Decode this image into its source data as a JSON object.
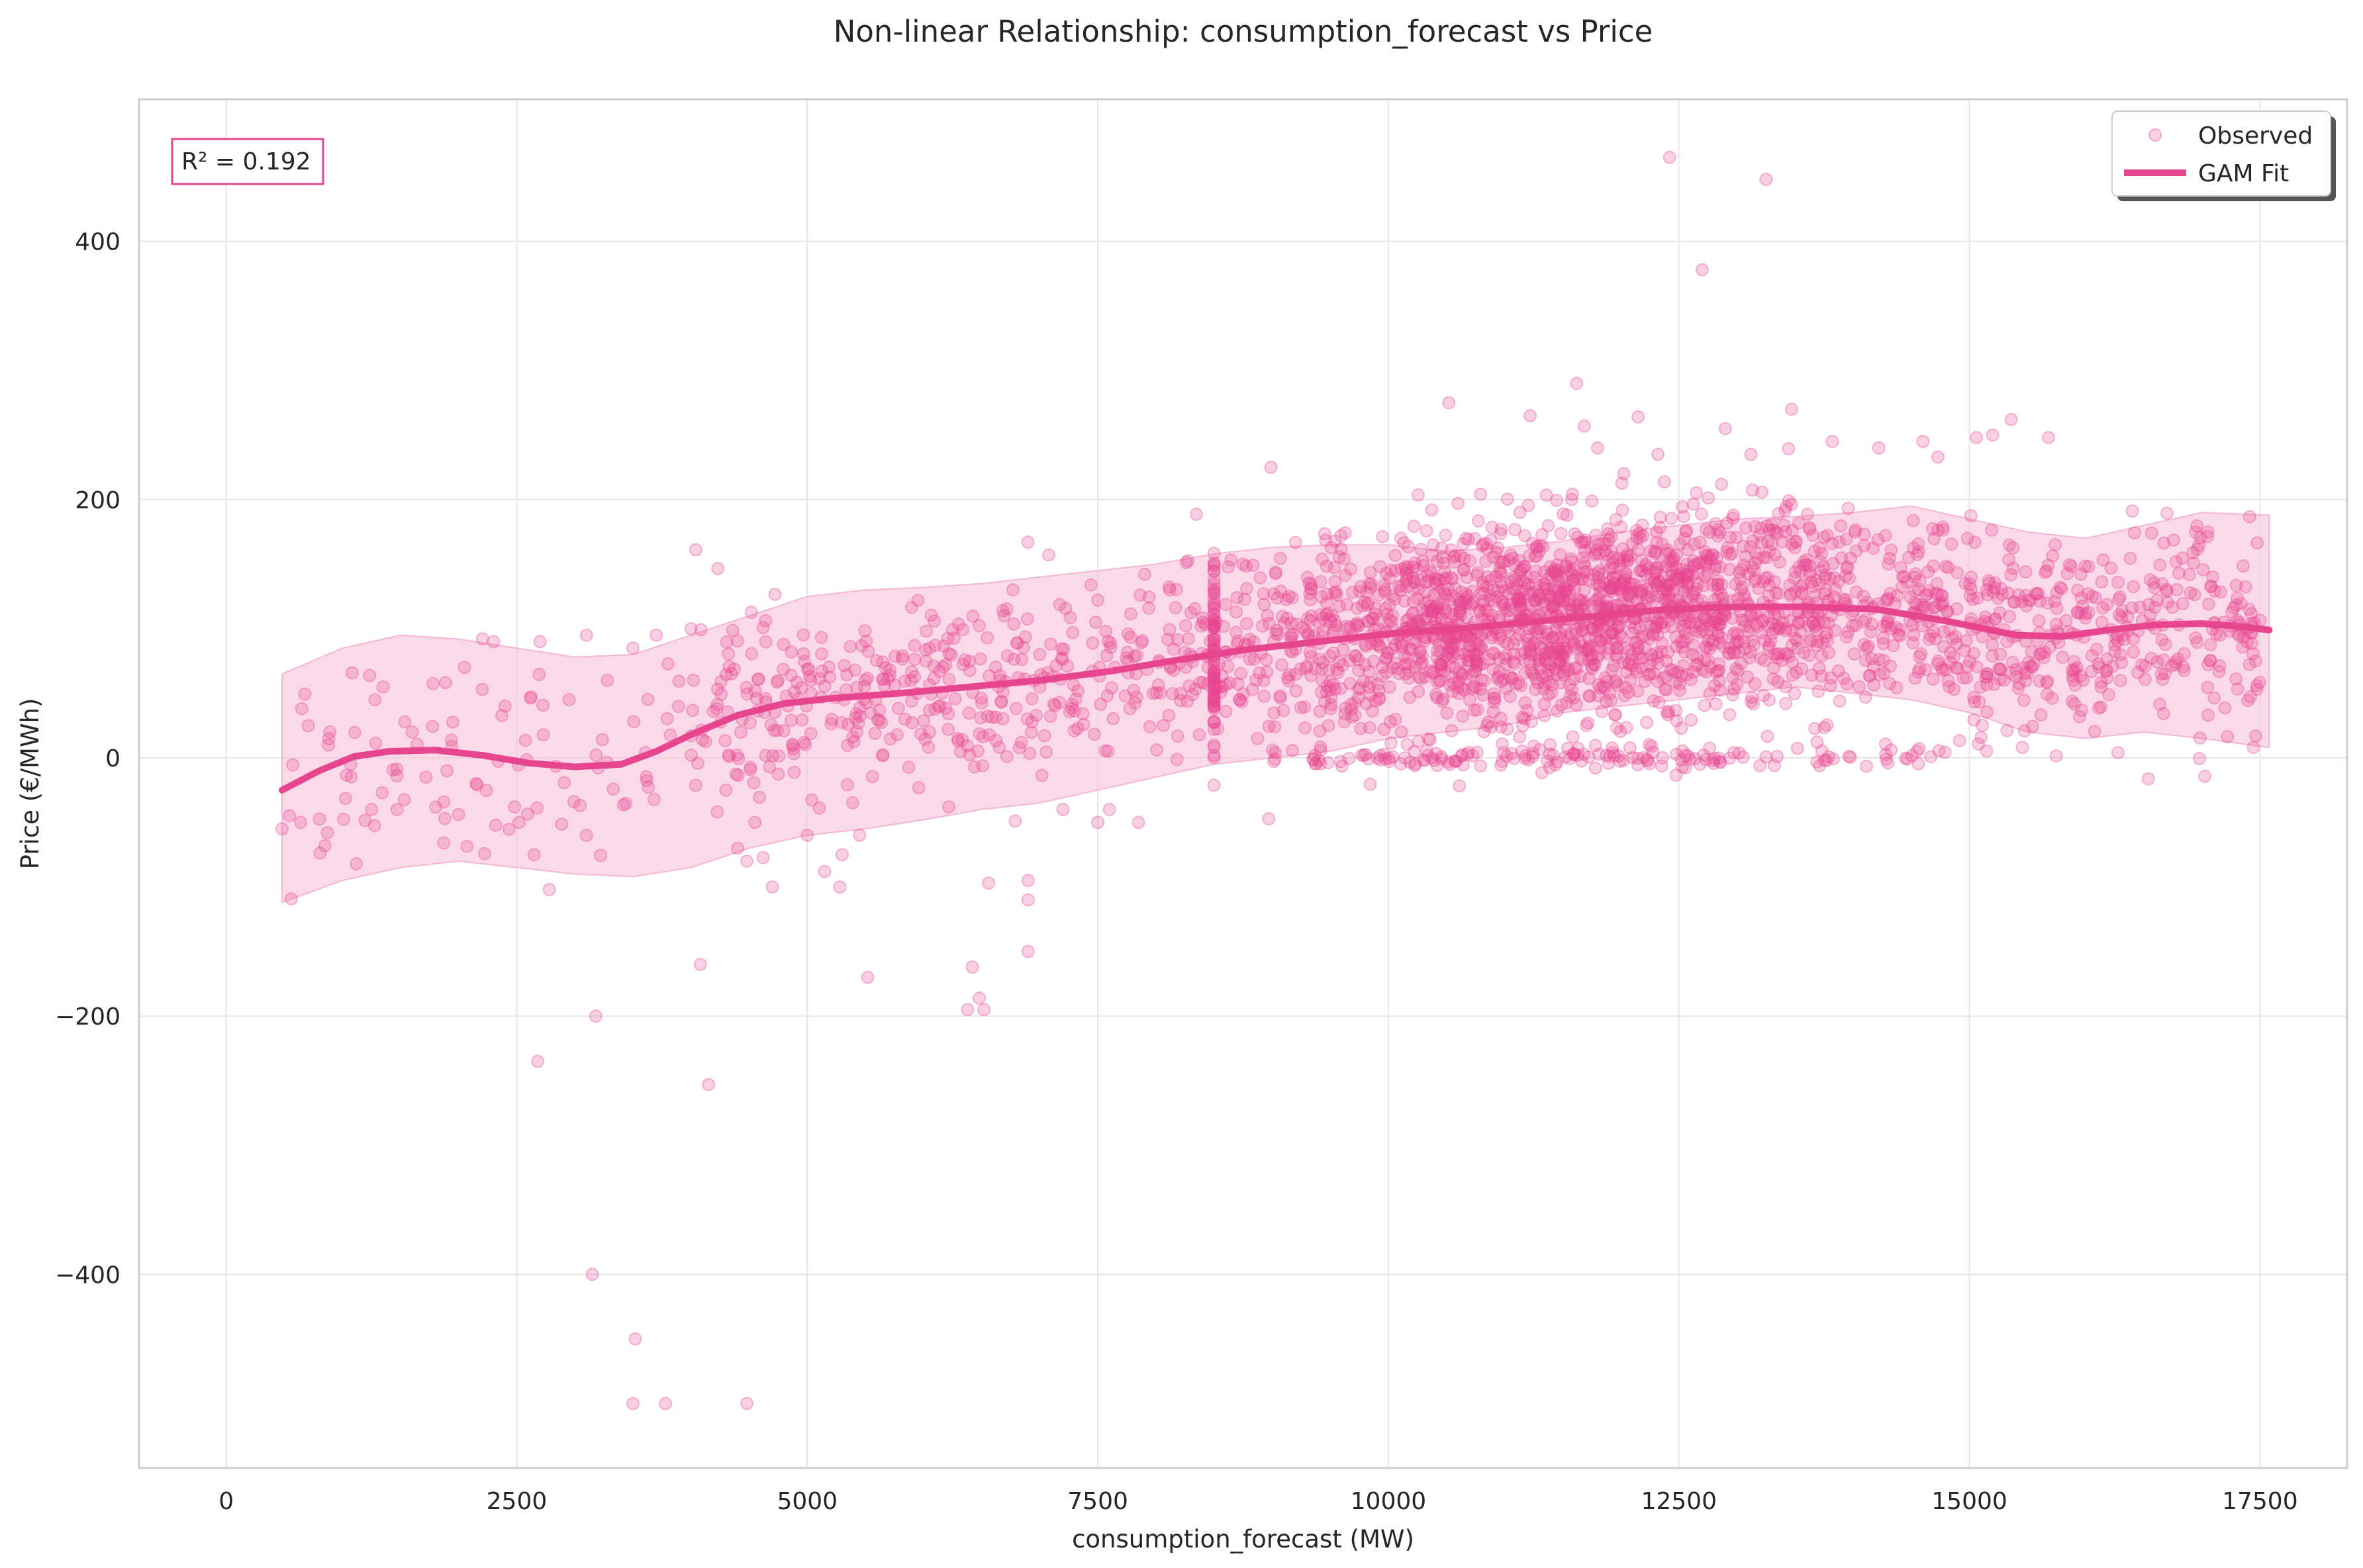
{
  "chart_data": {
    "type": "scatter",
    "title": "Non-linear Relationship: consumption_forecast vs Price",
    "xlabel": "consumption_forecast (MW)",
    "ylabel": "Price (€/MWh)",
    "xlim": [
      -750,
      18250
    ],
    "ylim": [
      -550,
      510
    ],
    "x_ticks": [
      0,
      2500,
      5000,
      7500,
      10000,
      12500,
      15000,
      17500
    ],
    "x_tick_labels": [
      "0",
      "2500",
      "5000",
      "7500",
      "10000",
      "12500",
      "15000",
      "17500"
    ],
    "y_ticks": [
      -400,
      -200,
      0,
      200,
      400
    ],
    "y_tick_labels": [
      "−400",
      "−200",
      "0",
      "200",
      "400"
    ],
    "grid": true,
    "legend_position": "top-right",
    "annotation": "R² = 0.192",
    "colors": {
      "accent": "#e8458f",
      "band": "#f7c6dd",
      "band_edge": "#f093bf",
      "grid": "#e6e6e6",
      "spine": "#cccccc",
      "text": "#262626"
    },
    "series": [
      {
        "name": "Observed",
        "kind": "scatter",
        "points": [
          [
            12420,
            465
          ],
          [
            13250,
            448
          ],
          [
            12700,
            378
          ],
          [
            11620,
            290
          ],
          [
            10520,
            275
          ],
          [
            11220,
            265
          ],
          [
            12150,
            264
          ],
          [
            13470,
            270
          ],
          [
            15360,
            262
          ],
          [
            15680,
            248
          ],
          [
            15060,
            248
          ],
          [
            14600,
            245
          ],
          [
            8990,
            225
          ],
          [
            12900,
            255
          ],
          [
            13820,
            245
          ],
          [
            14220,
            240
          ],
          [
            12320,
            235
          ],
          [
            11800,
            240
          ],
          [
            13120,
            235
          ],
          [
            15200,
            250
          ],
          [
            3180,
            -200
          ],
          [
            2680,
            -235
          ],
          [
            4150,
            -253
          ],
          [
            4080,
            -160
          ],
          [
            5520,
            -170
          ],
          [
            6380,
            -195
          ],
          [
            6480,
            -186
          ],
          [
            6520,
            -195
          ],
          [
            6420,
            -162
          ],
          [
            6900,
            -150
          ],
          [
            6900,
            -110
          ],
          [
            6900,
            -95
          ],
          [
            6560,
            -97
          ],
          [
            3150,
            -400
          ],
          [
            3520,
            -450
          ],
          [
            3500,
            -500
          ],
          [
            3780,
            -500
          ],
          [
            4480,
            -500
          ],
          [
            3100,
            -60
          ],
          [
            2780,
            -102
          ],
          [
            2650,
            -75
          ],
          [
            2520,
            -50
          ],
          [
            4700,
            -100
          ],
          [
            4480,
            -80
          ],
          [
            5000,
            -60
          ],
          [
            5280,
            -100
          ],
          [
            5150,
            -88
          ],
          [
            5450,
            -60
          ],
          [
            7600,
            -40
          ],
          [
            7850,
            -50
          ],
          [
            7500,
            -50
          ],
          [
            4300,
            -25
          ],
          [
            4550,
            -50
          ],
          [
            7200,
            -40
          ],
          [
            5300,
            -75
          ],
          [
            480,
            -55
          ],
          [
            640,
            -50
          ],
          [
            870,
            -58
          ],
          [
            850,
            -68
          ],
          [
            1120,
            -82
          ],
          [
            1250,
            -40
          ],
          [
            1470,
            -40
          ],
          [
            1720,
            -15
          ],
          [
            1900,
            -10
          ],
          [
            2150,
            -20
          ],
          [
            2400,
            40
          ],
          [
            2700,
            90
          ],
          [
            2300,
            90
          ],
          [
            650,
            38
          ],
          [
            1070,
            -5
          ],
          [
            1280,
            45
          ],
          [
            1600,
            20
          ],
          [
            1350,
            55
          ],
          [
            880,
            10
          ],
          [
            2050,
            70
          ],
          [
            3100,
            95
          ],
          [
            3280,
            60
          ],
          [
            3500,
            85
          ],
          [
            3700,
            95
          ],
          [
            4000,
            100
          ]
        ]
      },
      {
        "name": "GAM Fit",
        "kind": "line",
        "points": [
          [
            480,
            -25
          ],
          [
            800,
            -10
          ],
          [
            1100,
            1
          ],
          [
            1400,
            5
          ],
          [
            1800,
            6
          ],
          [
            2200,
            2
          ],
          [
            2600,
            -4
          ],
          [
            3000,
            -7
          ],
          [
            3400,
            -5
          ],
          [
            3700,
            5
          ],
          [
            4000,
            18
          ],
          [
            4400,
            33
          ],
          [
            4800,
            42
          ],
          [
            5200,
            46
          ],
          [
            5800,
            50
          ],
          [
            6400,
            55
          ],
          [
            7000,
            60
          ],
          [
            7600,
            67
          ],
          [
            8200,
            76
          ],
          [
            8800,
            84
          ],
          [
            9400,
            90
          ],
          [
            10000,
            96
          ],
          [
            10600,
            100
          ],
          [
            11200,
            105
          ],
          [
            11800,
            110
          ],
          [
            12400,
            115
          ],
          [
            13000,
            117
          ],
          [
            13600,
            117
          ],
          [
            14200,
            115
          ],
          [
            14800,
            106
          ],
          [
            15400,
            95
          ],
          [
            15800,
            94
          ],
          [
            16200,
            99
          ],
          [
            16600,
            103
          ],
          [
            17000,
            104
          ],
          [
            17300,
            102
          ],
          [
            17580,
            99
          ]
        ]
      }
    ],
    "confidence_band": {
      "x": [
        480,
        1000,
        1500,
        2000,
        2500,
        3000,
        3500,
        4000,
        4500,
        5000,
        5500,
        6000,
        6500,
        7000,
        7500,
        8000,
        8500,
        9000,
        9500,
        10000,
        10500,
        11000,
        11500,
        12000,
        12500,
        13000,
        13500,
        14000,
        14500,
        15000,
        15500,
        16000,
        16500,
        17000,
        17580
      ],
      "upper": [
        65,
        85,
        95,
        92,
        85,
        78,
        80,
        95,
        110,
        125,
        130,
        132,
        135,
        140,
        145,
        150,
        158,
        163,
        165,
        165,
        160,
        163,
        168,
        175,
        180,
        185,
        187,
        190,
        195,
        185,
        175,
        170,
        180,
        190,
        188
      ],
      "lower": [
        -112,
        -95,
        -85,
        -80,
        -85,
        -90,
        -92,
        -85,
        -70,
        -60,
        -55,
        -48,
        -40,
        -35,
        -25,
        -15,
        -5,
        0,
        5,
        15,
        20,
        25,
        35,
        40,
        45,
        50,
        55,
        50,
        45,
        35,
        20,
        15,
        20,
        15,
        8
      ]
    }
  }
}
